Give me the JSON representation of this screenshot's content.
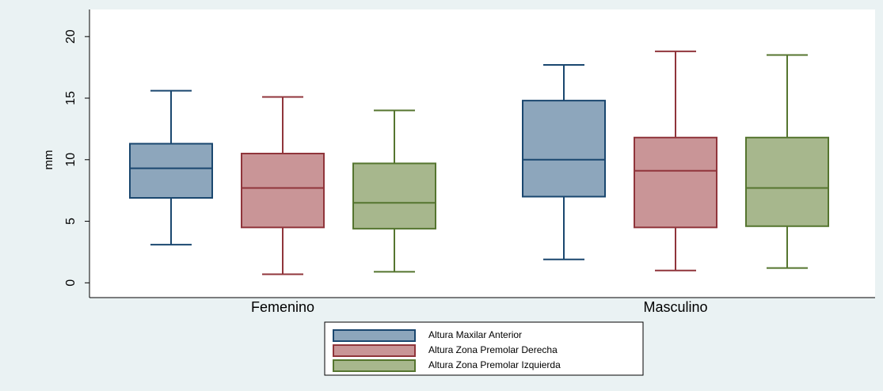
{
  "chart_data": {
    "type": "box",
    "y_label": "mm",
    "categories": [
      "Femenino",
      "Masculino"
    ],
    "ylim": [
      -1.2,
      22.2
    ],
    "yticks": [
      0,
      5,
      10,
      15,
      20
    ],
    "series": [
      {
        "name": "Altura Maxilar Anterior",
        "color": "#8da6bc",
        "edge": "#1a476f",
        "values": [
          {
            "min": 3.1,
            "q1": 6.9,
            "median": 9.3,
            "q3": 11.3,
            "max": 15.6
          },
          {
            "min": 1.9,
            "q1": 7.0,
            "median": 10.0,
            "q3": 14.8,
            "max": 17.7
          }
        ]
      },
      {
        "name": "Altura Zona Premolar Derecha",
        "color": "#c99597",
        "edge": "#90353b",
        "values": [
          {
            "min": 0.7,
            "q1": 4.5,
            "median": 7.7,
            "q3": 10.5,
            "max": 15.1
          },
          {
            "min": 1.0,
            "q1": 4.5,
            "median": 9.1,
            "q3": 11.8,
            "max": 18.8
          }
        ]
      },
      {
        "name": "Altura Zona Premolar Izquierda",
        "color": "#a7b78d",
        "edge": "#55752f",
        "values": [
          {
            "min": 0.9,
            "q1": 4.4,
            "median": 6.5,
            "q3": 9.7,
            "max": 14.0
          },
          {
            "min": 1.2,
            "q1": 4.6,
            "median": 7.7,
            "q3": 11.8,
            "max": 18.5
          }
        ]
      }
    ]
  }
}
